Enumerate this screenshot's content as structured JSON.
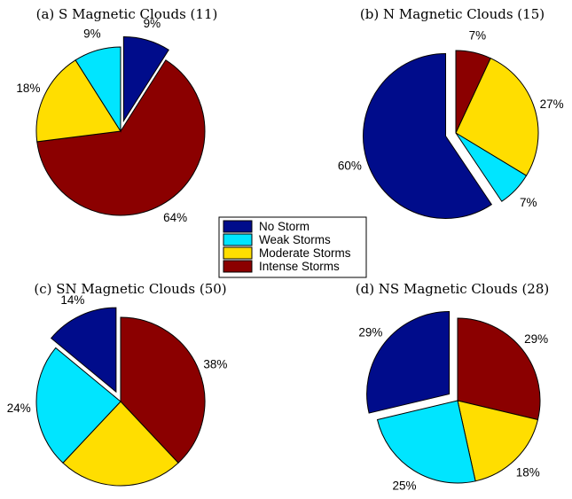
{
  "chart_data": [
    {
      "type": "pie",
      "title": "(a) S Magnetic Clouds (11)",
      "slices": [
        {
          "label": "No Storm",
          "value": 9,
          "text": "9%",
          "exploded": true
        },
        {
          "label": "Intense Storms",
          "value": 64,
          "text": "64%",
          "exploded": false
        },
        {
          "label": "Moderate Storms",
          "value": 18,
          "text": "18%",
          "exploded": false
        },
        {
          "label": "Weak Storms",
          "value": 9,
          "text": "9%",
          "exploded": false
        }
      ]
    },
    {
      "type": "pie",
      "title": "(b) N Magnetic Clouds (15)",
      "slices": [
        {
          "label": "Intense Storms",
          "value": 7,
          "text": "7%",
          "exploded": false
        },
        {
          "label": "Moderate Storms",
          "value": 27,
          "text": "27%",
          "exploded": false
        },
        {
          "label": "Weak Storms",
          "value": 7,
          "text": "7%",
          "exploded": false
        },
        {
          "label": "No Storm",
          "value": 60,
          "text": "60%",
          "exploded": true
        }
      ]
    },
    {
      "type": "pie",
      "title": "(c) SN Magnetic Clouds (50)",
      "slices": [
        {
          "label": "Intense Storms",
          "value": 38,
          "text": "38%",
          "exploded": false
        },
        {
          "label": "Moderate Storms",
          "value": 24,
          "text": "24%",
          "exploded": false
        },
        {
          "label": "Weak Storms",
          "value": 24,
          "text": "24%",
          "exploded": false
        },
        {
          "label": "No Storm",
          "value": 14,
          "text": "14%",
          "exploded": true
        }
      ]
    },
    {
      "type": "pie",
      "title": "(d) NS Magnetic Clouds (28)",
      "slices": [
        {
          "label": "Intense Storms",
          "value": 29,
          "text": "29%",
          "exploded": false
        },
        {
          "label": "Moderate Storms",
          "value": 18,
          "text": "18%",
          "exploded": false
        },
        {
          "label": "Weak Storms",
          "value": 25,
          "text": "25%",
          "exploded": false
        },
        {
          "label": "No Storm",
          "value": 29,
          "text": "29%",
          "exploded": true
        }
      ]
    }
  ],
  "legend": {
    "placement": "center",
    "items": [
      {
        "label": "No Storm",
        "color": "#000c8b"
      },
      {
        "label": "Weak Storms",
        "color": "#00e5ff"
      },
      {
        "label": "Moderate Storms",
        "color": "#ffde00"
      },
      {
        "label": "Intense Storms",
        "color": "#8b0000"
      }
    ]
  }
}
